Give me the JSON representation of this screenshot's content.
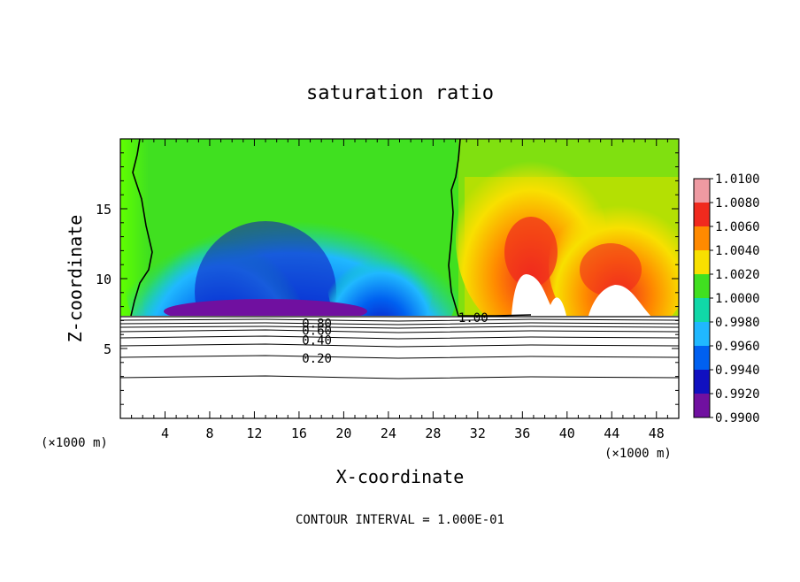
{
  "chart_data": {
    "type": "heatmap",
    "title": "saturation ratio",
    "xlabel": "X-coordinate",
    "ylabel": "Z-coordinate",
    "x_unit": "(×1000 m)",
    "x_unit_left": "(×1000 m)",
    "xlim": [
      0,
      50
    ],
    "ylim": [
      0,
      20
    ],
    "x_ticks": [
      4,
      8,
      12,
      16,
      20,
      24,
      28,
      32,
      36,
      40,
      44,
      48
    ],
    "y_ticks": [
      5,
      10,
      15
    ],
    "footer": "CONTOUR INTERVAL = 1.000E-01",
    "colorbar": {
      "levels": [
        "1.0100",
        "1.0080",
        "1.0060",
        "1.0040",
        "1.0020",
        "1.0000",
        "0.9980",
        "0.9960",
        "0.9940",
        "0.9920",
        "0.9900"
      ],
      "colors": [
        "#ee9aa2",
        "#f02a1e",
        "#ff8a00",
        "#f8e000",
        "#40e020",
        "#10d8a8",
        "#20b8ff",
        "#0060f0",
        "#1010c0",
        "#7010a0"
      ]
    },
    "contour_labels": [
      {
        "text": "1.00",
        "x": 31.6,
        "y": 7.2
      },
      {
        "text": "0.80",
        "x": 17.6,
        "y": 6.8
      },
      {
        "text": "0.60",
        "x": 17.6,
        "y": 6.3
      },
      {
        "text": "0.40",
        "x": 17.6,
        "y": 5.6
      },
      {
        "text": "0.20",
        "x": 17.6,
        "y": 4.3
      }
    ]
  }
}
